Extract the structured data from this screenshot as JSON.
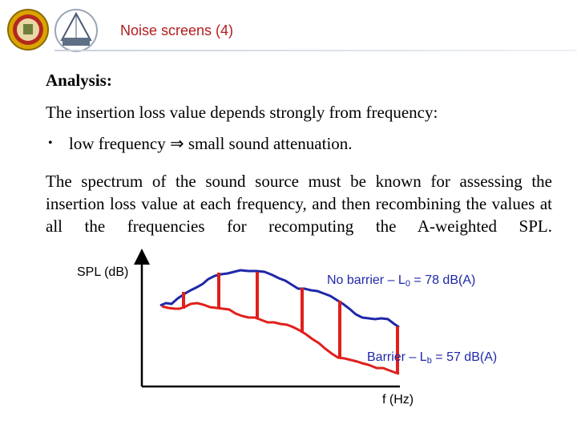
{
  "header": {
    "title": "Noise screens (4)",
    "logos": [
      "university-seal-icon",
      "acoustics-group-logo-icon"
    ]
  },
  "content": {
    "heading": "Analysis:",
    "intro": "The insertion loss value depends strongly from frequency:",
    "bullet_symbol": "•",
    "bullet_text_before": "low frequency",
    "bullet_arrow": "⇒",
    "bullet_text_after": "small sound attenuation.",
    "paragraph": "The spectrum of the sound source must be known for assessing the insertion loss value at each frequency, and then recombining the values at all the frequencies for recomputing the A-weighted SPL."
  },
  "figure": {
    "y_axis_label": "SPL (dB)",
    "x_axis_label": "f (Hz)",
    "no_barrier_label": "No barrier – L",
    "no_barrier_sub": "0",
    "no_barrier_value": " = 78 dB(A)",
    "barrier_label": "Barrier – L",
    "barrier_sub": "b",
    "barrier_value": " = 57 dB(A)",
    "colors": {
      "no_barrier": "#1f28a8",
      "barrier": "#e0201c",
      "axes": "#000000"
    }
  }
}
